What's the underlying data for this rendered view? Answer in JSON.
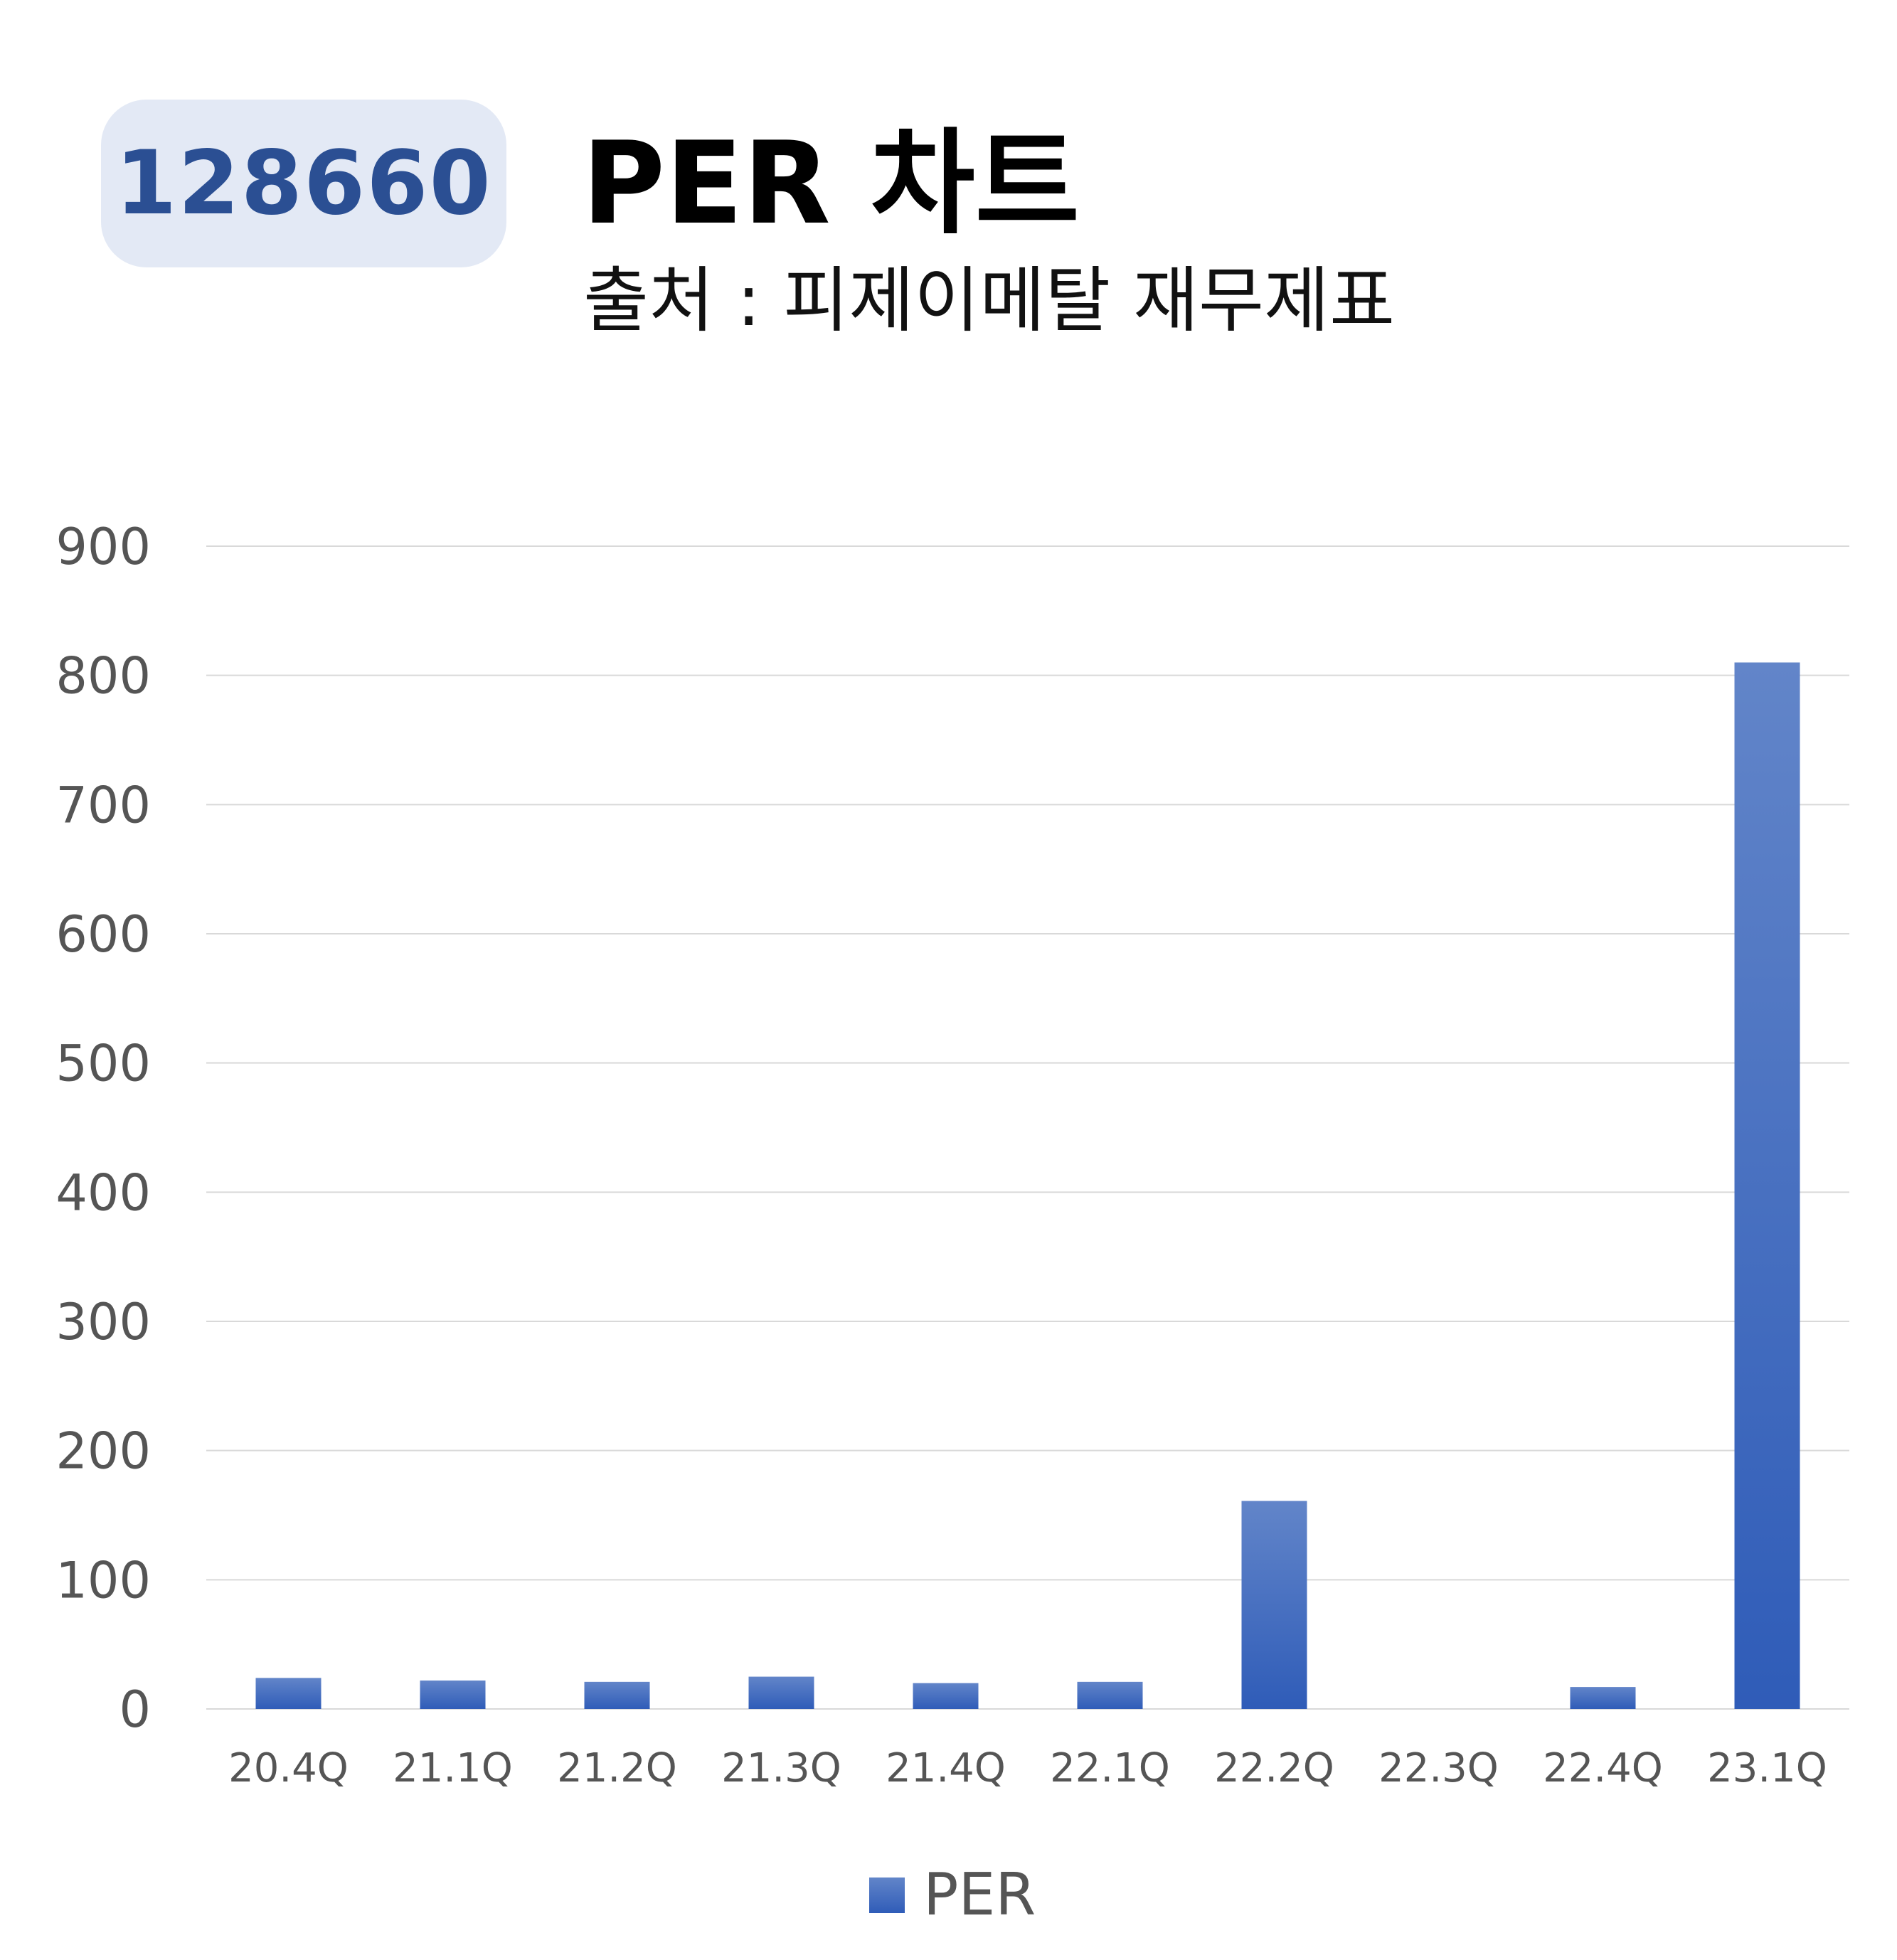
{
  "header": {
    "code": "128660",
    "title": "PER 차트",
    "subtitle": "출처 : 피제이메탈 재무제표"
  },
  "colors": {
    "badge_bg": "#e3e9f5",
    "badge_text": "#2b4f93",
    "bar_top": "#6285c9",
    "bar_bottom": "#2f5cb8",
    "grid": "#d9d9d9",
    "tick_text": "#555555"
  },
  "chart_data": {
    "type": "bar",
    "categories": [
      "20.4Q",
      "21.1Q",
      "21.2Q",
      "21.3Q",
      "21.4Q",
      "22.1Q",
      "22.2Q",
      "22.3Q",
      "22.4Q",
      "23.1Q"
    ],
    "series": [
      {
        "name": "PER",
        "values": [
          24,
          22,
          21,
          25,
          20,
          21,
          161,
          null,
          17,
          810
        ]
      }
    ],
    "ylim": [
      0,
      900
    ],
    "yticks": [
      "0",
      "100",
      "200",
      "300",
      "400",
      "500",
      "600",
      "700",
      "800",
      "900"
    ],
    "grid": true,
    "legend": "bottom"
  }
}
